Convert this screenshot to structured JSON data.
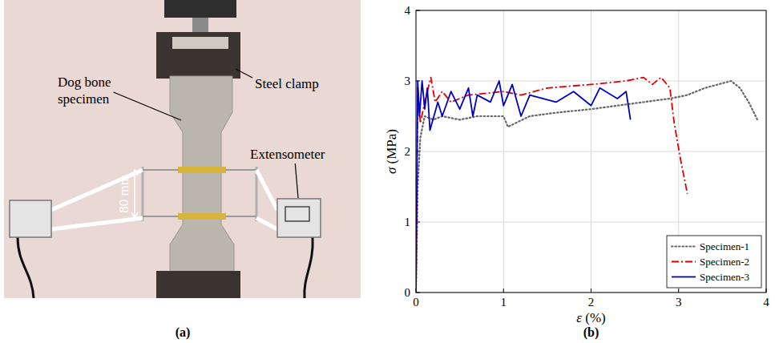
{
  "figure": {
    "panel_labels": [
      "(a)",
      "(b)"
    ]
  },
  "photo": {
    "labels": {
      "specimen": "Dog bone specimen",
      "clamp": "Steel clamp",
      "gauge": "80 mm",
      "extensometer": "Extensometer"
    }
  },
  "chart_data": {
    "type": "line",
    "x_label": "ε (%)",
    "y_label": "σ (MPa)",
    "xlim": [
      0,
      4
    ],
    "ylim": [
      0,
      4
    ],
    "xticks": [
      0,
      1,
      2,
      3,
      4
    ],
    "yticks": [
      0,
      1,
      2,
      3,
      4
    ],
    "grid": true,
    "legend": "lower right",
    "series": [
      {
        "name": "Specimen-1",
        "color": "#666666",
        "line_style": "dotted",
        "x": [
          0,
          0.02,
          0.05,
          0.1,
          0.2,
          0.3,
          0.5,
          0.7,
          1.0,
          1.05,
          1.3,
          1.6,
          2.0,
          2.3,
          2.6,
          2.9,
          3.1,
          3.3,
          3.6,
          3.7,
          3.8,
          3.9
        ],
        "values": [
          0,
          1.5,
          2.2,
          2.5,
          2.45,
          2.5,
          2.45,
          2.5,
          2.5,
          2.35,
          2.5,
          2.55,
          2.6,
          2.65,
          2.7,
          2.75,
          2.8,
          2.9,
          3.0,
          2.9,
          2.7,
          2.45
        ]
      },
      {
        "name": "Specimen-2",
        "color": "#e00000",
        "line_style": "dashdot",
        "x": [
          0,
          0.02,
          0.05,
          0.1,
          0.17,
          0.22,
          0.3,
          0.4,
          0.6,
          1.0,
          1.2,
          1.5,
          2.0,
          2.4,
          2.6,
          2.7,
          2.8,
          2.9,
          2.95,
          3.02,
          3.1
        ],
        "values": [
          0,
          2.9,
          2.4,
          2.7,
          3.05,
          2.7,
          2.85,
          2.7,
          2.8,
          2.85,
          2.8,
          2.9,
          2.95,
          3.0,
          3.05,
          2.95,
          3.05,
          2.9,
          2.4,
          1.9,
          1.4
        ]
      },
      {
        "name": "Specimen-3",
        "color": "#0000c0",
        "line_style": "solid",
        "x": [
          0,
          0.02,
          0.04,
          0.07,
          0.1,
          0.13,
          0.16,
          0.25,
          0.3,
          0.4,
          0.5,
          0.6,
          0.65,
          0.7,
          0.85,
          0.95,
          1.0,
          1.1,
          1.2,
          1.3,
          1.6,
          1.8,
          2.0,
          2.1,
          2.3,
          2.4,
          2.45
        ],
        "values": [
          0,
          3.0,
          2.5,
          3.0,
          2.6,
          2.9,
          2.3,
          2.7,
          2.5,
          2.85,
          2.6,
          2.9,
          2.5,
          2.8,
          2.7,
          3.0,
          2.65,
          2.95,
          2.5,
          2.8,
          2.7,
          2.85,
          2.65,
          2.9,
          2.75,
          2.85,
          2.45
        ]
      }
    ]
  }
}
